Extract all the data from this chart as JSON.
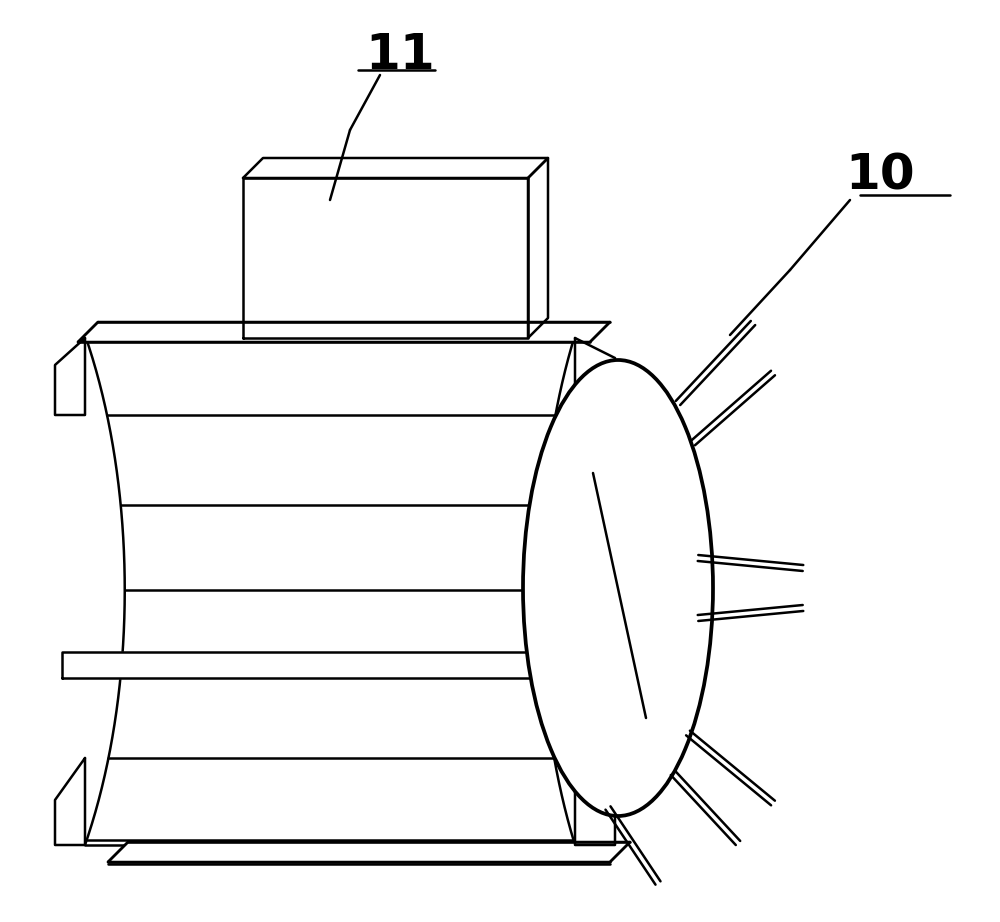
{
  "bg_color": "#ffffff",
  "line_color": "#000000",
  "line_width": 1.8,
  "label_11": "11",
  "label_10": "10",
  "figsize": [
    10.0,
    9.22
  ]
}
